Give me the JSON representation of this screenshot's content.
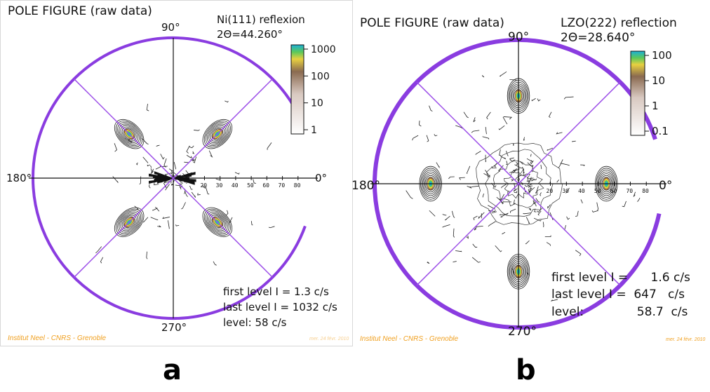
{
  "panels": [
    {
      "id": "a",
      "title": "POLE FIGURE (raw data)",
      "reflection": "Ni(111) reflexion",
      "two_theta": "2Θ=44.260°",
      "angle_labels": {
        "top": "90°",
        "left": "180°",
        "right": "0°",
        "bottom": "270°"
      },
      "radial_ticks": [
        "20",
        "30",
        "40",
        "50",
        "60",
        "70",
        "80"
      ],
      "colorbar_ticks": [
        "1000",
        "100",
        "10",
        "1"
      ],
      "levels": {
        "first": "first level I =    1.3 c/s",
        "last": "last level I = 1032 c/s",
        "step": "level: 58 c/s"
      },
      "footer_left": "Institut Neel - CNRS - Grenoble",
      "footer_right": "mer. 24 févr. 2010",
      "peaks_deg": [
        45,
        135,
        225,
        315
      ],
      "peak_radius": 40,
      "caption": "a"
    },
    {
      "id": "b",
      "title": "POLE FIGURE (raw data)",
      "reflection": "LZO(222) reflection",
      "two_theta": "2Θ=28.640°",
      "angle_labels": {
        "top": "90°",
        "left": "180°",
        "right": "0°",
        "bottom": "270°"
      },
      "radial_ticks": [
        "20",
        "30",
        "40",
        "50",
        "60",
        "70",
        "80"
      ],
      "colorbar_ticks": [
        "100",
        "10",
        "1",
        "0.1"
      ],
      "levels": {
        "first": "first level I =      1.6 c/s",
        "last": "last level I =  647   c/s",
        "step": "level:              58.7  c/s"
      },
      "footer_left": "Institut Neel - CNRS - Grenoble",
      "footer_right": "mer. 24 févr. 2010",
      "peaks_deg": [
        0,
        90,
        180,
        270
      ],
      "peak_radius": 55,
      "caption": "b"
    }
  ],
  "colors": {
    "ring": "#8a3ce0",
    "diagonal": "#9b4de8",
    "footer": "#f0a020",
    "contour": "#222222",
    "peak_core": [
      "#1bb0d8",
      "#5cc85a",
      "#e8d040",
      "#9a6a40"
    ]
  }
}
